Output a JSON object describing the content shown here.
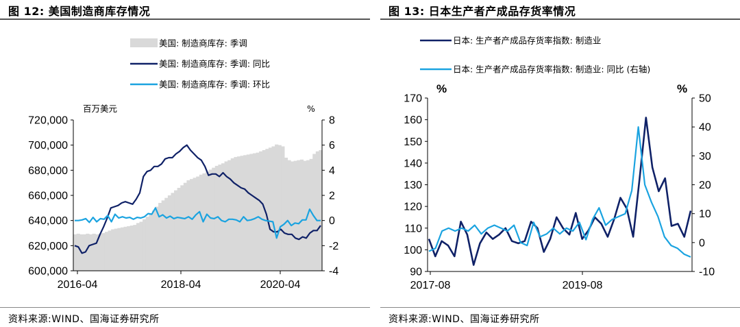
{
  "left": {
    "title": "图 12:  美国制造商库存情况",
    "source": "资料来源:WIND、国海证券研究所",
    "chart_data": {
      "type": "area",
      "x_ticks": [
        "2016-04",
        "2018-04",
        "2020-04"
      ],
      "y_left_unit": "百万美元",
      "y_right_unit": "%",
      "ylim_left": [
        600000,
        720000
      ],
      "ylim_right": [
        -4,
        8
      ],
      "y_left_ticks": [
        "600,000",
        "620,000",
        "640,000",
        "660,000",
        "680,000",
        "700,000",
        "720,000"
      ],
      "y_right_ticks": [
        "-4",
        "-2",
        "0",
        "2",
        "4",
        "6",
        "8"
      ],
      "legend": [
        "美国: 制造商库存: 季调",
        "美国: 制造商库存: 季调: 同比",
        "美国: 制造商库存: 季调: 环比"
      ],
      "grid": false,
      "legend_position": "top",
      "series": [
        {
          "name": "美国: 制造商库存: 季调",
          "axis": "left",
          "style": "area",
          "color": "#d9d9d9",
          "values": [
            629000,
            629500,
            629000,
            629000,
            629500,
            629000,
            629500,
            629000,
            629500,
            630000,
            631000,
            632000,
            633000,
            633500,
            634000,
            634500,
            635000,
            635500,
            636000,
            636500,
            638000,
            639000,
            641000,
            643000,
            645000,
            648000,
            651000,
            654000,
            656000,
            658000,
            660000,
            662000,
            664000,
            666000,
            668000,
            670000,
            672000,
            673000,
            674000,
            675000,
            676500,
            677500,
            679000,
            680500,
            682000,
            683500,
            684500,
            685500,
            687000,
            688000,
            689500,
            690500,
            691000,
            691500,
            692000,
            692500,
            693000,
            693500,
            694000,
            695000,
            696000,
            697000,
            698000,
            699000,
            700500,
            700000,
            699000,
            690000,
            688000,
            687000,
            687500,
            688000,
            688500,
            687500,
            688000,
            689000,
            693000,
            695000,
            696000
          ]
        },
        {
          "name": "美国: 制造商库存: 季调: 同比",
          "axis": "right",
          "style": "line",
          "color": "#0f2167",
          "values": [
            -2.0,
            -2.1,
            -2.6,
            -2.5,
            -2.0,
            -1.9,
            -1.8,
            -1.1,
            -0.5,
            0.2,
            1.0,
            1.1,
            1.2,
            1.4,
            1.5,
            1.4,
            1.3,
            1.7,
            2.2,
            3.5,
            3.9,
            4.0,
            4.3,
            4.3,
            4.5,
            4.9,
            5.0,
            5.0,
            5.3,
            5.5,
            5.8,
            6.0,
            5.6,
            5.3,
            5.0,
            4.8,
            4.3,
            3.6,
            3.7,
            3.7,
            3.5,
            3.8,
            3.5,
            3.3,
            3.0,
            2.8,
            2.6,
            2.5,
            2.2,
            2.0,
            1.8,
            1.6,
            1.3,
            0.5,
            -0.7,
            -0.9,
            -0.9,
            -0.7,
            -1.0,
            -1.1,
            -1.1,
            -1.4,
            -1.5,
            -1.3,
            -1.4,
            -1.0,
            -0.8,
            -0.8,
            -0.4
          ]
        },
        {
          "name": "美国: 制造商库存: 季调: 环比",
          "axis": "right",
          "style": "line",
          "color": "#1aa3e0",
          "values": [
            0.0,
            0.0,
            0.05,
            0.15,
            -0.15,
            0.25,
            -0.1,
            0.15,
            0.1,
            0.4,
            -0.1,
            0.5,
            0.2,
            0.3,
            0.2,
            0.25,
            0.1,
            0.25,
            0.2,
            0.3,
            0.55,
            0.5,
            1.0,
            0.3,
            0.45,
            0.2,
            0.35,
            0.15,
            0.25,
            0.2,
            0.15,
            0.3,
            0.1,
            0.45,
            0.7,
            -0.1,
            0.5,
            0.2,
            0.15,
            0.3,
            0.0,
            -0.1,
            0.1,
            0.1,
            0.05,
            -0.1,
            0.3,
            0.0,
            0.05,
            0.15,
            0.3,
            0.1,
            0.0,
            -0.05,
            -0.1,
            -1.4,
            -0.5,
            -0.3,
            0.0,
            -0.4,
            -0.2,
            -0.25,
            0.05,
            0.05,
            0.9,
            0.4,
            0.0,
            0.0
          ]
        }
      ]
    }
  },
  "right": {
    "title": "图 13:  日本生产者产成品存货率情况",
    "source": "资料来源:WIND、国海证券研究所",
    "chart_data": {
      "type": "line",
      "x_ticks": [
        "2017-08",
        "2019-08"
      ],
      "y_left_unit": "%",
      "y_right_unit": "%",
      "ylim_left": [
        90,
        170
      ],
      "ylim_right": [
        -10,
        50
      ],
      "y_left_ticks": [
        "90",
        "100",
        "110",
        "120",
        "130",
        "140",
        "150",
        "160",
        "170"
      ],
      "y_right_ticks": [
        "-10",
        "0",
        "10",
        "20",
        "30",
        "40",
        "50"
      ],
      "legend": [
        "日本: 生产者产成品存货率指数: 制造业",
        "日本: 生产者产成品存货率指数: 制造业: 同比 (右轴)"
      ],
      "grid": false,
      "legend_position": "top",
      "series": [
        {
          "name": "日本: 生产者产成品存货率指数: 制造业",
          "axis": "left",
          "color": "#0f2167",
          "values": [
            105,
            97,
            104,
            102,
            97,
            113,
            107,
            93,
            103,
            108,
            105,
            107,
            110,
            104,
            103,
            104,
            113,
            110,
            99,
            105,
            115,
            110,
            107,
            117,
            105,
            109,
            115,
            112,
            106,
            114,
            124,
            119,
            106,
            133,
            161,
            138,
            127,
            133,
            111,
            112,
            106,
            118
          ]
        },
        {
          "name": "日本: 生产者产成品存货率指数: 制造业: 同比 (右轴)",
          "axis": "right",
          "color": "#1aa3e0",
          "values": [
            -3,
            -2,
            4,
            5,
            4,
            5,
            4,
            6,
            3,
            5,
            6,
            5,
            4,
            6,
            0,
            -1,
            7,
            2,
            3,
            5,
            3,
            5,
            4,
            7,
            1,
            8,
            12,
            6,
            8,
            9,
            10,
            18,
            40,
            20,
            14,
            9,
            2,
            -1,
            -2,
            -4,
            -5
          ]
        }
      ]
    }
  }
}
